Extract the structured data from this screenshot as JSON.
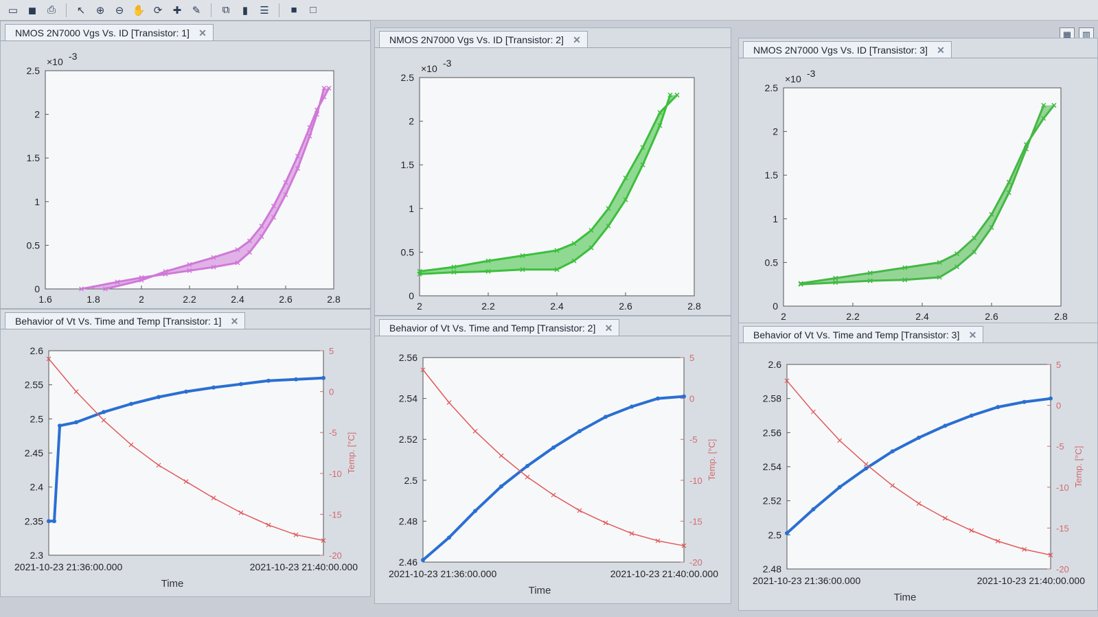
{
  "toolbar": {
    "icons": [
      "open-folder-icon",
      "save-icon",
      "print-icon",
      "pointer-icon",
      "zoom-in-icon",
      "zoom-out-icon",
      "pan-hand-icon",
      "rotate-icon",
      "data-cursor-icon",
      "brush-icon",
      "link-plot-icon",
      "colorbar-icon",
      "legend-icon",
      "hide-axes-icon",
      "show-axes-icon"
    ]
  },
  "layout_buttons": [
    "tile-layout-icon",
    "columns-layout-icon"
  ],
  "panels": [
    {
      "tab": "NMOS 2N7000 Vgs Vs. ID [Transistor: 1]",
      "exponent": "×10",
      "exponent_power": "-3",
      "color": "#d078d8",
      "chart_data": {
        "type": "scatter",
        "title": "",
        "xlabel": "",
        "ylabel": "",
        "xlim": [
          1.6,
          2.8
        ],
        "ylim": [
          0,
          2.5
        ],
        "xticks": [
          "1.6",
          "1.8",
          "2",
          "2.2",
          "2.4",
          "2.6",
          "2.8"
        ],
        "yticks": [
          "0",
          "0.5",
          "1",
          "1.5",
          "2",
          "2.5"
        ],
        "series": [
          {
            "x": [
              1.75,
              1.9,
              2.0,
              2.1,
              2.2,
              2.3,
              2.4,
              2.45,
              2.5,
              2.55,
              2.6,
              2.65,
              2.7,
              2.73,
              2.76
            ],
            "y": [
              0.0,
              0.08,
              0.13,
              0.17,
              0.21,
              0.25,
              0.3,
              0.42,
              0.6,
              0.82,
              1.08,
              1.38,
              1.75,
              2.0,
              2.3
            ]
          },
          {
            "x": [
              1.85,
              2.0,
              2.1,
              2.2,
              2.3,
              2.4,
              2.45,
              2.5,
              2.55,
              2.6,
              2.65,
              2.7,
              2.73,
              2.76,
              2.78
            ],
            "y": [
              0.0,
              0.1,
              0.2,
              0.28,
              0.36,
              0.45,
              0.55,
              0.72,
              0.95,
              1.22,
              1.52,
              1.85,
              2.05,
              2.2,
              2.3
            ]
          }
        ]
      }
    },
    {
      "tab": "NMOS 2N7000 Vgs Vs. ID [Transistor: 2]",
      "exponent": "×10",
      "exponent_power": "-3",
      "color": "#3cbf3c",
      "chart_data": {
        "type": "scatter",
        "title": "",
        "xlabel": "",
        "ylabel": "",
        "xlim": [
          2,
          2.8
        ],
        "ylim": [
          0,
          2.5
        ],
        "xticks": [
          "2",
          "2.2",
          "2.4",
          "2.6",
          "2.8"
        ],
        "yticks": [
          "0",
          "0.5",
          "1",
          "1.5",
          "2",
          "2.5"
        ],
        "series": [
          {
            "x": [
              2.0,
              2.1,
              2.2,
              2.3,
              2.4,
              2.45,
              2.5,
              2.55,
              2.6,
              2.65,
              2.7,
              2.73
            ],
            "y": [
              0.25,
              0.27,
              0.28,
              0.3,
              0.3,
              0.4,
              0.55,
              0.8,
              1.1,
              1.5,
              1.95,
              2.3
            ]
          },
          {
            "x": [
              2.0,
              2.1,
              2.2,
              2.3,
              2.4,
              2.45,
              2.5,
              2.55,
              2.6,
              2.65,
              2.7,
              2.75
            ],
            "y": [
              0.28,
              0.33,
              0.4,
              0.46,
              0.52,
              0.6,
              0.75,
              1.0,
              1.35,
              1.7,
              2.1,
              2.3
            ]
          }
        ]
      }
    },
    {
      "tab": "NMOS 2N7000 Vgs Vs. ID [Transistor: 3]",
      "exponent": "×10",
      "exponent_power": "-3",
      "color": "#44b844",
      "chart_data": {
        "type": "scatter",
        "title": "",
        "xlabel": "",
        "ylabel": "",
        "xlim": [
          2,
          2.8
        ],
        "ylim": [
          0,
          2.5
        ],
        "xticks": [
          "2",
          "2.2",
          "2.4",
          "2.6",
          "2.8"
        ],
        "yticks": [
          "0",
          "0.5",
          "1",
          "1.5",
          "2",
          "2.5"
        ],
        "series": [
          {
            "x": [
              2.05,
              2.15,
              2.25,
              2.35,
              2.45,
              2.5,
              2.55,
              2.6,
              2.65,
              2.7,
              2.75
            ],
            "y": [
              0.25,
              0.27,
              0.29,
              0.3,
              0.33,
              0.45,
              0.62,
              0.9,
              1.3,
              1.8,
              2.3
            ]
          },
          {
            "x": [
              2.05,
              2.15,
              2.25,
              2.35,
              2.45,
              2.5,
              2.55,
              2.6,
              2.65,
              2.7,
              2.75,
              2.78
            ],
            "y": [
              0.26,
              0.32,
              0.38,
              0.44,
              0.5,
              0.6,
              0.78,
              1.05,
              1.42,
              1.85,
              2.15,
              2.3
            ]
          }
        ]
      }
    },
    {
      "tab": "Behavior of Vt Vs. Time and Temp [Transistor: 1]",
      "xstart": "2021-10-23 21:36:00.000",
      "xend": "2021-10-23 21:40:00.000",
      "xlabel": "Time",
      "ylabel_right": "Temp. [°C]",
      "chart_data": {
        "type": "line",
        "x_range": [
          "2021-10-23 21:36:00.000",
          "2021-10-23 21:40:00.000"
        ],
        "left_ylim": [
          2.3,
          2.6
        ],
        "left_yticks": [
          "2.3",
          "2.35",
          "2.4",
          "2.45",
          "2.5",
          "2.55",
          "2.6"
        ],
        "right_ylim": [
          -20,
          5
        ],
        "right_yticks": [
          "-20",
          "-15",
          "-10",
          "-5",
          "0",
          "5"
        ],
        "series": [
          {
            "axis": "left",
            "color": "#2a6fd2",
            "x": [
              0,
              0.02,
              0.04,
              0.1,
              0.2,
              0.3,
              0.4,
              0.5,
              0.6,
              0.7,
              0.8,
              0.9,
              1.0
            ],
            "y": [
              2.35,
              2.35,
              2.49,
              2.495,
              2.51,
              2.522,
              2.532,
              2.54,
              2.546,
              2.551,
              2.556,
              2.558,
              2.56
            ]
          },
          {
            "axis": "right",
            "color": "#e05a5a",
            "x": [
              0,
              0.1,
              0.2,
              0.3,
              0.4,
              0.5,
              0.6,
              0.7,
              0.8,
              0.9,
              1.0
            ],
            "y": [
              4.0,
              0.0,
              -3.5,
              -6.5,
              -9.0,
              -11.0,
              -13.0,
              -14.8,
              -16.3,
              -17.5,
              -18.2
            ]
          }
        ]
      }
    },
    {
      "tab": "Behavior of Vt Vs. Time and Temp [Transistor: 2]",
      "xstart": "2021-10-23 21:36:00.000",
      "xend": "2021-10-23 21:40:00.000",
      "xlabel": "Time",
      "ylabel_right": "Temp. [°C]",
      "chart_data": {
        "type": "line",
        "x_range": [
          "2021-10-23 21:36:00.000",
          "2021-10-23 21:40:00.000"
        ],
        "left_ylim": [
          2.46,
          2.56
        ],
        "left_yticks": [
          "2.46",
          "2.48",
          "2.5",
          "2.52",
          "2.54",
          "2.56"
        ],
        "right_ylim": [
          -20,
          5
        ],
        "right_yticks": [
          "-20",
          "-15",
          "-10",
          "-5",
          "0",
          "5"
        ],
        "series": [
          {
            "axis": "left",
            "color": "#2a6fd2",
            "x": [
              0,
              0.1,
              0.2,
              0.3,
              0.4,
              0.5,
              0.6,
              0.7,
              0.8,
              0.9,
              1.0
            ],
            "y": [
              2.461,
              2.472,
              2.485,
              2.497,
              2.507,
              2.516,
              2.524,
              2.531,
              2.536,
              2.54,
              2.541
            ]
          },
          {
            "axis": "right",
            "color": "#e05a5a",
            "x": [
              0,
              0.1,
              0.2,
              0.3,
              0.4,
              0.5,
              0.6,
              0.7,
              0.8,
              0.9,
              1.0
            ],
            "y": [
              3.5,
              -0.5,
              -4.0,
              -7.0,
              -9.6,
              -11.8,
              -13.7,
              -15.2,
              -16.5,
              -17.4,
              -18.0
            ]
          }
        ]
      }
    },
    {
      "tab": "Behavior of Vt Vs. Time and Temp [Transistor: 3]",
      "xstart": "2021-10-23 21:36:00.000",
      "xend": "2021-10-23 21:40:00.000",
      "xlabel": "Time",
      "ylabel_right": "Temp. [°C]",
      "chart_data": {
        "type": "line",
        "x_range": [
          "2021-10-23 21:36:00.000",
          "2021-10-23 21:40:00.000"
        ],
        "left_ylim": [
          2.48,
          2.6
        ],
        "left_yticks": [
          "2.48",
          "2.5",
          "2.52",
          "2.54",
          "2.56",
          "2.58",
          "2.6"
        ],
        "right_ylim": [
          -20,
          5
        ],
        "right_yticks": [
          "-20",
          "-15",
          "-10",
          "-5",
          "0",
          "5"
        ],
        "series": [
          {
            "axis": "left",
            "color": "#2a6fd2",
            "x": [
              0,
              0.1,
              0.2,
              0.3,
              0.4,
              0.5,
              0.6,
              0.7,
              0.8,
              0.9,
              1.0
            ],
            "y": [
              2.501,
              2.515,
              2.528,
              2.539,
              2.549,
              2.557,
              2.564,
              2.57,
              2.575,
              2.578,
              2.58
            ]
          },
          {
            "axis": "right",
            "color": "#e05a5a",
            "x": [
              0,
              0.1,
              0.2,
              0.3,
              0.4,
              0.5,
              0.6,
              0.7,
              0.8,
              0.9,
              1.0
            ],
            "y": [
              3.0,
              -0.8,
              -4.3,
              -7.2,
              -9.8,
              -12.0,
              -13.8,
              -15.3,
              -16.6,
              -17.6,
              -18.3
            ]
          }
        ]
      }
    }
  ]
}
